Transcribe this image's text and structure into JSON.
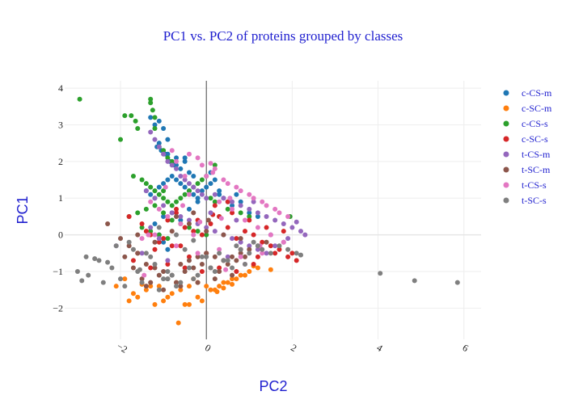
{
  "chart_data": {
    "type": "scatter",
    "title": "PC1 vs. PC2 of proteins grouped by classes",
    "xlabel": "PC2",
    "ylabel": "PC1",
    "xlim": [
      -3.3,
      6.4
    ],
    "ylim": [
      -2.85,
      4.2
    ],
    "x_ticks": [
      -2,
      0,
      2,
      4,
      6
    ],
    "x_tick_labels": [
      "−2",
      "0",
      "2",
      "4",
      "6"
    ],
    "y_ticks": [
      -2,
      -1,
      0,
      1,
      2,
      3,
      4
    ],
    "y_tick_labels": [
      "−2",
      "−1",
      "0",
      "1",
      "2",
      "3",
      "4"
    ],
    "grid": true,
    "legend_position": "right",
    "series": [
      {
        "name": "c-CS-m",
        "color": "#1f77b4",
        "x": [
          -1.3,
          -1.2,
          -1.1,
          -1.0,
          -0.9,
          -1.15,
          -1.05,
          -0.95,
          -0.85,
          -0.75,
          -0.7,
          -0.6,
          -0.5,
          -0.4,
          -0.3,
          -1.4,
          -1.3,
          -1.2,
          -1.1,
          -1.0,
          -0.9,
          -0.8,
          -0.7,
          -0.6,
          -0.5,
          -0.4,
          -0.3,
          -0.2,
          -0.1,
          0.0,
          0.1,
          0.2,
          0.3,
          0.4,
          0.5,
          0.6,
          0.7,
          0.8,
          1.0,
          1.2,
          -1.2,
          -1.1,
          -1.0,
          -0.9,
          -0.8,
          -0.6,
          -0.4,
          -0.2,
          0.1,
          0.3,
          -1.1,
          -0.9,
          -0.7,
          -0.5,
          -1.0
        ],
        "y": [
          3.2,
          3.0,
          3.1,
          2.9,
          2.6,
          2.4,
          2.3,
          2.2,
          2.0,
          1.9,
          2.1,
          1.8,
          2.0,
          1.7,
          1.6,
          1.2,
          1.1,
          1.0,
          1.3,
          1.4,
          1.5,
          1.6,
          1.5,
          1.4,
          1.3,
          1.2,
          1.1,
          1.0,
          1.2,
          1.3,
          1.4,
          1.5,
          1.2,
          1.0,
          0.9,
          0.8,
          1.1,
          0.9,
          0.6,
          0.5,
          0.3,
          0.0,
          -0.2,
          -0.4,
          0.6,
          0.4,
          0.7,
          0.9,
          1.7,
          1.1,
          2.5,
          2.2,
          1.9,
          2.1,
          0.5
        ]
      },
      {
        "name": "c-SC-m",
        "color": "#ff7f0e",
        "x": [
          -1.8,
          -1.6,
          -1.4,
          -1.2,
          -1.0,
          -0.8,
          -0.6,
          -0.4,
          -0.2,
          0.0,
          0.2,
          0.4,
          0.6,
          0.8,
          1.0,
          1.2,
          1.5,
          -1.7,
          -1.3,
          -0.9,
          -0.7,
          -0.3,
          0.1,
          0.3,
          0.5,
          0.7,
          0.9,
          -1.1,
          -0.5,
          -0.1,
          0.4,
          -0.65,
          -0.4,
          -0.2,
          0.6,
          -2.1,
          -1.9,
          -1.5,
          0.25,
          1.1
        ],
        "y": [
          -1.8,
          -1.7,
          -1.5,
          -1.9,
          -1.8,
          -1.6,
          -1.5,
          -1.4,
          -1.3,
          -1.4,
          -1.5,
          -1.3,
          -1.2,
          -1.1,
          -1.0,
          -0.9,
          -0.95,
          -1.6,
          -1.4,
          -1.7,
          -1.3,
          -1.2,
          -1.5,
          -1.4,
          -1.3,
          -1.2,
          -1.1,
          -1.4,
          -1.9,
          -1.8,
          -1.45,
          -2.4,
          -1.9,
          -1.7,
          -1.35,
          -1.4,
          -1.2,
          -1.35,
          -1.55,
          -0.85
        ]
      },
      {
        "name": "c-CS-s",
        "color": "#2ca02c",
        "x": [
          -2.95,
          -1.9,
          -1.75,
          -1.65,
          -1.6,
          -1.3,
          -1.3,
          -1.25,
          -1.2,
          -1.2,
          -1.1,
          -1.0,
          -0.9,
          -0.8,
          -2.0,
          -1.7,
          -1.5,
          -1.4,
          -1.3,
          -1.2,
          -1.1,
          -1.0,
          -0.9,
          -0.8,
          -0.7,
          -0.6,
          -0.5,
          -0.4,
          -0.3,
          -0.2,
          -0.1,
          0.0,
          0.1,
          0.2,
          -1.8,
          -1.6,
          -1.4,
          -1.2,
          -1.0,
          -0.8,
          -0.6,
          -0.4,
          -0.2,
          0.0,
          0.3,
          0.5,
          0.8,
          1.0,
          -1.5,
          -1.3,
          -1.1,
          -0.9,
          1.95,
          0.2,
          -1.0
        ],
        "y": [
          3.7,
          3.25,
          3.25,
          3.1,
          2.9,
          3.7,
          3.6,
          3.4,
          3.2,
          2.9,
          2.4,
          2.3,
          2.1,
          2.0,
          2.6,
          1.6,
          1.5,
          1.4,
          1.3,
          1.2,
          1.1,
          1.0,
          0.9,
          0.8,
          0.9,
          1.0,
          1.1,
          1.2,
          1.3,
          1.4,
          1.5,
          1.6,
          1.0,
          0.9,
          0.5,
          0.6,
          0.7,
          0.8,
          0.6,
          0.4,
          0.3,
          0.2,
          0.1,
          0.0,
          0.5,
          0.7,
          0.6,
          0.5,
          0.2,
          0.1,
          0.0,
          -0.1,
          0.5,
          1.9,
          1.2
        ]
      },
      {
        "name": "c-SC-s",
        "color": "#d62728",
        "x": [
          -1.8,
          -1.5,
          -1.3,
          -1.1,
          -0.9,
          -0.7,
          -0.5,
          -0.3,
          -0.1,
          0.1,
          0.3,
          0.5,
          0.7,
          0.9,
          1.1,
          1.3,
          1.5,
          1.7,
          1.9,
          2.1,
          -1.6,
          -1.2,
          -0.8,
          -0.4,
          0.0,
          0.4,
          0.8,
          1.2,
          1.6,
          -1.4,
          -1.0,
          -0.6,
          -0.2,
          0.2,
          0.6,
          1.0,
          1.4,
          1.8,
          -0.9,
          -0.5,
          -0.1,
          0.3,
          0.7,
          1.1,
          -1.7,
          -1.3,
          -0.7,
          0.5,
          2.0,
          0.15
        ],
        "y": [
          0.5,
          0.3,
          0.0,
          -0.2,
          0.4,
          0.6,
          0.2,
          0.1,
          0.0,
          0.3,
          0.5,
          0.2,
          -0.1,
          0.1,
          0.0,
          -0.2,
          -0.3,
          -0.4,
          -0.6,
          -0.7,
          -0.5,
          -0.4,
          -0.3,
          -0.6,
          -0.5,
          -0.7,
          -0.4,
          -0.6,
          -0.5,
          0.1,
          -0.1,
          -0.3,
          0.4,
          0.8,
          0.6,
          0.4,
          0.2,
          0.1,
          -0.8,
          -0.9,
          -1.0,
          -0.9,
          -1.0,
          -0.8,
          -0.7,
          -0.9,
          0.7,
          0.9,
          -0.5,
          0.55
        ]
      },
      {
        "name": "t-CS-m",
        "color": "#9467bd",
        "x": [
          -1.3,
          -1.2,
          -1.1,
          -1.0,
          -0.9,
          -0.8,
          -0.7,
          -0.6,
          -0.5,
          -0.4,
          -0.3,
          -0.2,
          -0.1,
          0.0,
          0.2,
          0.4,
          0.6,
          0.8,
          1.0,
          1.2,
          1.4,
          1.6,
          1.8,
          2.0,
          2.2,
          -1.4,
          -1.2,
          -1.0,
          -0.8,
          -0.6,
          -0.4,
          -0.2,
          0.0,
          0.2,
          0.4,
          0.6,
          0.8,
          1.0,
          1.2,
          1.4,
          1.6,
          1.8,
          -2.1,
          -1.5,
          -0.9,
          0.5,
          1.5,
          2.1,
          2.3,
          -1.3,
          -1.1,
          0.1,
          0.7,
          1.9,
          1.1
        ],
        "y": [
          2.8,
          2.6,
          2.4,
          2.2,
          2.0,
          1.9,
          1.8,
          1.6,
          1.5,
          1.4,
          1.3,
          1.2,
          1.1,
          1.0,
          1.1,
          1.0,
          0.9,
          0.8,
          0.7,
          0.6,
          0.5,
          0.4,
          0.3,
          0.2,
          0.1,
          1.2,
          1.0,
          0.8,
          0.6,
          0.5,
          0.4,
          0.3,
          0.2,
          0.1,
          0.0,
          -0.1,
          -0.2,
          -0.3,
          -0.4,
          -0.5,
          -0.3,
          -0.2,
          -0.3,
          -0.5,
          -0.7,
          -0.6,
          0.0,
          0.35,
          0.0,
          0.2,
          -0.1,
          0.6,
          0.4,
          -0.1,
          0.9
        ]
      },
      {
        "name": "t-SC-m",
        "color": "#8c564b",
        "x": [
          -2.3,
          -2.0,
          -1.8,
          -1.6,
          -1.4,
          -1.2,
          -1.0,
          -0.8,
          -0.6,
          -0.4,
          -0.2,
          0.0,
          0.2,
          0.4,
          0.6,
          0.8,
          1.0,
          1.2,
          1.4,
          -1.9,
          -1.7,
          -1.5,
          -1.3,
          -1.1,
          -0.9,
          -0.7,
          -0.5,
          -0.3,
          -0.1,
          0.1,
          0.3,
          0.5,
          0.7,
          0.9,
          -1.6,
          -1.2,
          -0.8,
          -0.4,
          0.0,
          0.4,
          0.8,
          -1.4,
          -1.0,
          -0.6,
          -0.2,
          0.2,
          0.6,
          -0.7,
          -0.3,
          0.05
        ],
        "y": [
          0.3,
          -0.1,
          -0.3,
          -0.5,
          -0.8,
          -0.9,
          -1.0,
          -1.1,
          -0.8,
          -0.7,
          -0.6,
          -0.5,
          -0.6,
          -0.7,
          -0.6,
          -0.5,
          -0.4,
          -0.3,
          -0.2,
          -0.6,
          -0.9,
          -1.2,
          -1.3,
          -1.1,
          -1.2,
          -1.3,
          -1.0,
          -0.9,
          -0.8,
          -0.9,
          -1.0,
          -0.8,
          -0.7,
          -0.6,
          0.0,
          -0.2,
          0.1,
          0.3,
          0.1,
          0.0,
          -0.1,
          -1.4,
          -1.5,
          -1.4,
          -1.3,
          -1.2,
          -1.1,
          0.5,
          0.6,
          0.4
        ]
      },
      {
        "name": "t-CS-s",
        "color": "#e377c2",
        "x": [
          -0.8,
          -0.7,
          -0.5,
          -0.4,
          -0.2,
          -0.1,
          0.1,
          0.2,
          0.4,
          0.5,
          0.7,
          0.8,
          1.0,
          1.1,
          1.3,
          1.4,
          1.6,
          1.7,
          1.9,
          -1.3,
          -1.1,
          -0.9,
          -0.6,
          -0.3,
          0.0,
          0.3,
          0.6,
          0.9,
          1.2,
          1.5,
          1.8,
          -1.5,
          -1.2,
          -0.7,
          -0.2,
          0.3,
          0.8,
          1.3,
          -0.95,
          -0.4,
          0.15,
          0.35,
          0.55,
          -1.35,
          -0.15,
          0.9,
          1.25,
          -1.45,
          -0.55,
          0.45
        ],
        "y": [
          2.3,
          2.0,
          1.6,
          2.2,
          2.1,
          1.9,
          1.95,
          1.8,
          1.5,
          1.4,
          1.3,
          1.2,
          1.1,
          1.0,
          0.9,
          0.8,
          0.7,
          0.6,
          0.5,
          0.9,
          0.7,
          0.5,
          0.3,
          0.0,
          1.6,
          0.9,
          0.7,
          0.4,
          0.2,
          0.0,
          -0.2,
          -0.1,
          0.0,
          -0.3,
          -0.5,
          -0.4,
          -0.6,
          -0.5,
          1.3,
          1.1,
          1.7,
          0.45,
          1.0,
          0.0,
          0.35,
          -0.8,
          -0.3,
          -1.1,
          0.8,
          -0.95
        ]
      },
      {
        "name": "t-SC-s",
        "color": "#7f7f7f",
        "x": [
          -3.0,
          -2.9,
          -2.8,
          -2.75,
          -2.6,
          -2.4,
          -2.3,
          -2.2,
          -2.1,
          -1.9,
          -1.7,
          -1.5,
          -1.3,
          -1.1,
          -0.9,
          -0.7,
          -0.5,
          -0.3,
          -0.1,
          0.1,
          0.3,
          0.5,
          0.7,
          0.9,
          1.1,
          1.3,
          1.5,
          1.7,
          1.9,
          2.1,
          2.2,
          -2.5,
          -2.0,
          -1.6,
          -1.2,
          -0.8,
          -0.4,
          0.0,
          0.4,
          0.8,
          1.2,
          -1.8,
          -1.4,
          -1.0,
          -0.6,
          -0.2,
          0.2,
          0.6,
          1.0,
          -1.1,
          -0.7,
          -0.3,
          4.05,
          4.85,
          5.85,
          -1.55,
          -0.9
        ],
        "y": [
          -1.0,
          -1.25,
          -0.6,
          -1.1,
          -0.65,
          -1.3,
          -0.75,
          -0.9,
          -0.3,
          -1.4,
          -0.4,
          -1.3,
          -0.6,
          -1.5,
          -1.0,
          -1.4,
          -0.4,
          -1.2,
          -0.6,
          -0.9,
          -0.5,
          -0.7,
          -0.3,
          -0.8,
          -0.2,
          -0.4,
          -0.5,
          -0.3,
          -0.4,
          -0.5,
          -0.55,
          -0.7,
          -1.2,
          -1.0,
          -0.8,
          -1.1,
          -0.9,
          -0.6,
          -0.7,
          -0.4,
          -0.3,
          -0.2,
          -0.5,
          -1.2,
          -1.3,
          -1.1,
          -1.0,
          -0.9,
          -0.5,
          0.2,
          0.0,
          -0.15,
          -1.05,
          -1.25,
          -1.3,
          -0.95,
          -1.2
        ]
      }
    ]
  }
}
